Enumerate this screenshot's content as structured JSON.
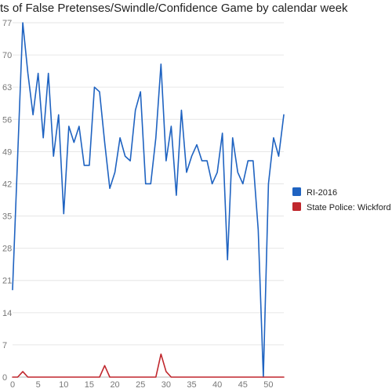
{
  "chart_data": {
    "type": "line",
    "title": "ts of False Pretenses/Swindle/Confidence Game by calendar week",
    "xlabel": "",
    "ylabel": "",
    "xlim": [
      0,
      53
    ],
    "ylim": [
      0,
      77
    ],
    "x_ticks": [
      "0",
      "5",
      "10",
      "15",
      "20",
      "25",
      "30",
      "35",
      "40",
      "45",
      "50"
    ],
    "y_ticks": [
      "0",
      "7",
      "14",
      "21",
      "28",
      "35",
      "42",
      "49",
      "56",
      "63",
      "70",
      "77"
    ],
    "x": [
      0,
      1,
      2,
      3,
      4,
      5,
      6,
      7,
      8,
      9,
      10,
      11,
      12,
      13,
      14,
      15,
      16,
      17,
      18,
      19,
      20,
      21,
      22,
      23,
      24,
      25,
      26,
      27,
      28,
      29,
      30,
      31,
      32,
      33,
      34,
      35,
      36,
      37,
      38,
      39,
      40,
      41,
      42,
      43,
      44,
      45,
      46,
      47,
      48,
      49,
      50,
      51,
      52,
      53
    ],
    "grid": true,
    "legend_position": "right",
    "series": [
      {
        "name": "RI-2016",
        "color": "#1f63c1",
        "values": [
          19,
          48,
          77,
          66,
          57,
          66,
          52,
          66,
          48,
          57,
          35.5,
          54.5,
          51,
          54.5,
          46,
          46,
          63,
          62,
          51,
          41,
          44.5,
          52,
          48,
          47,
          58,
          62,
          42,
          42,
          52,
          68,
          47,
          54.5,
          39.5,
          58,
          44.5,
          48,
          50.5,
          47,
          47,
          42,
          44.5,
          53,
          25.5,
          52,
          44.5,
          42,
          47,
          47,
          32,
          0,
          42,
          52,
          48,
          57
        ]
      },
      {
        "name": "State Police: Wickford",
        "color": "#c0272d",
        "values": [
          0,
          0,
          1.2,
          0,
          0,
          0,
          0,
          0,
          0,
          0,
          0,
          0,
          0,
          0,
          0,
          0,
          0,
          0,
          2.5,
          0,
          0,
          0,
          0,
          0,
          0,
          0,
          0,
          0,
          0,
          5,
          1.2,
          0,
          0,
          0,
          0,
          0,
          0,
          0,
          0,
          0,
          0,
          0,
          0,
          0,
          0,
          0,
          0,
          0,
          0,
          0,
          0,
          0,
          0,
          0
        ]
      }
    ]
  }
}
